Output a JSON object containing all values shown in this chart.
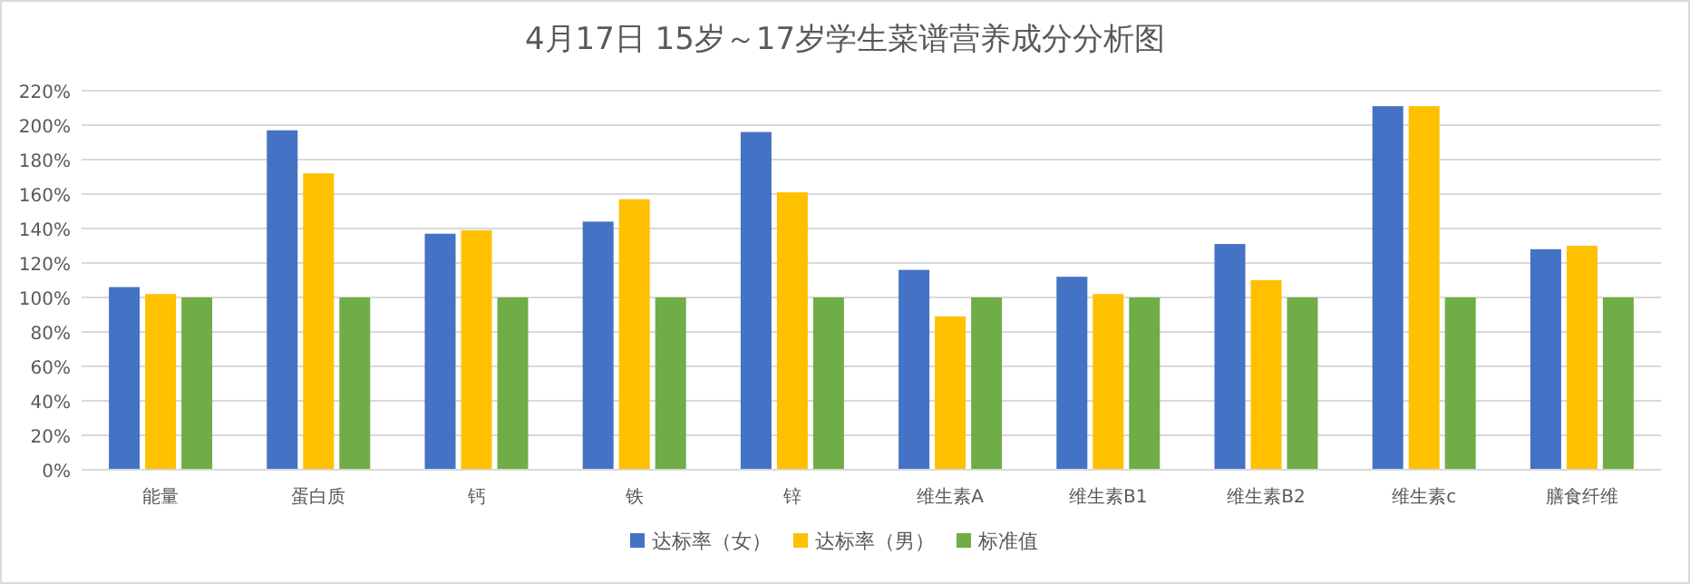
{
  "chart_data": {
    "type": "bar",
    "title": "4月17日 15岁～17岁学生菜谱营养成分分析图",
    "categories": [
      "能量",
      "蛋白质",
      "钙",
      "铁",
      "锌",
      "维生素A",
      "维生素B1",
      "维生素B2",
      "维生素c",
      "膳食纤维"
    ],
    "series": [
      {
        "name": "达标率（女）",
        "color": "#4472c4",
        "values": [
          106,
          197,
          137,
          144,
          196,
          116,
          112,
          131,
          211,
          128
        ]
      },
      {
        "name": "达标率（男）",
        "color": "#ffc000",
        "values": [
          102,
          172,
          139,
          157,
          161,
          89,
          102,
          110,
          211,
          130
        ]
      },
      {
        "name": "标准值",
        "color": "#70ad47",
        "values": [
          100,
          100,
          100,
          100,
          100,
          100,
          100,
          100,
          100,
          100
        ]
      }
    ],
    "ylim": [
      0,
      220
    ],
    "yticks": [
      {
        "value": 0,
        "label": "0%"
      },
      {
        "value": 20,
        "label": "20%"
      },
      {
        "value": 40,
        "label": "40%"
      },
      {
        "value": 60,
        "label": "60%"
      },
      {
        "value": 80,
        "label": "80%"
      },
      {
        "value": 100,
        "label": "100%"
      },
      {
        "value": 120,
        "label": "120%"
      },
      {
        "value": 140,
        "label": "140%"
      },
      {
        "value": 160,
        "label": "160%"
      },
      {
        "value": 180,
        "label": "180%"
      },
      {
        "value": 200,
        "label": "200%"
      },
      {
        "value": 220,
        "label": "220%"
      }
    ],
    "grid": "y",
    "legend": "bottom"
  }
}
